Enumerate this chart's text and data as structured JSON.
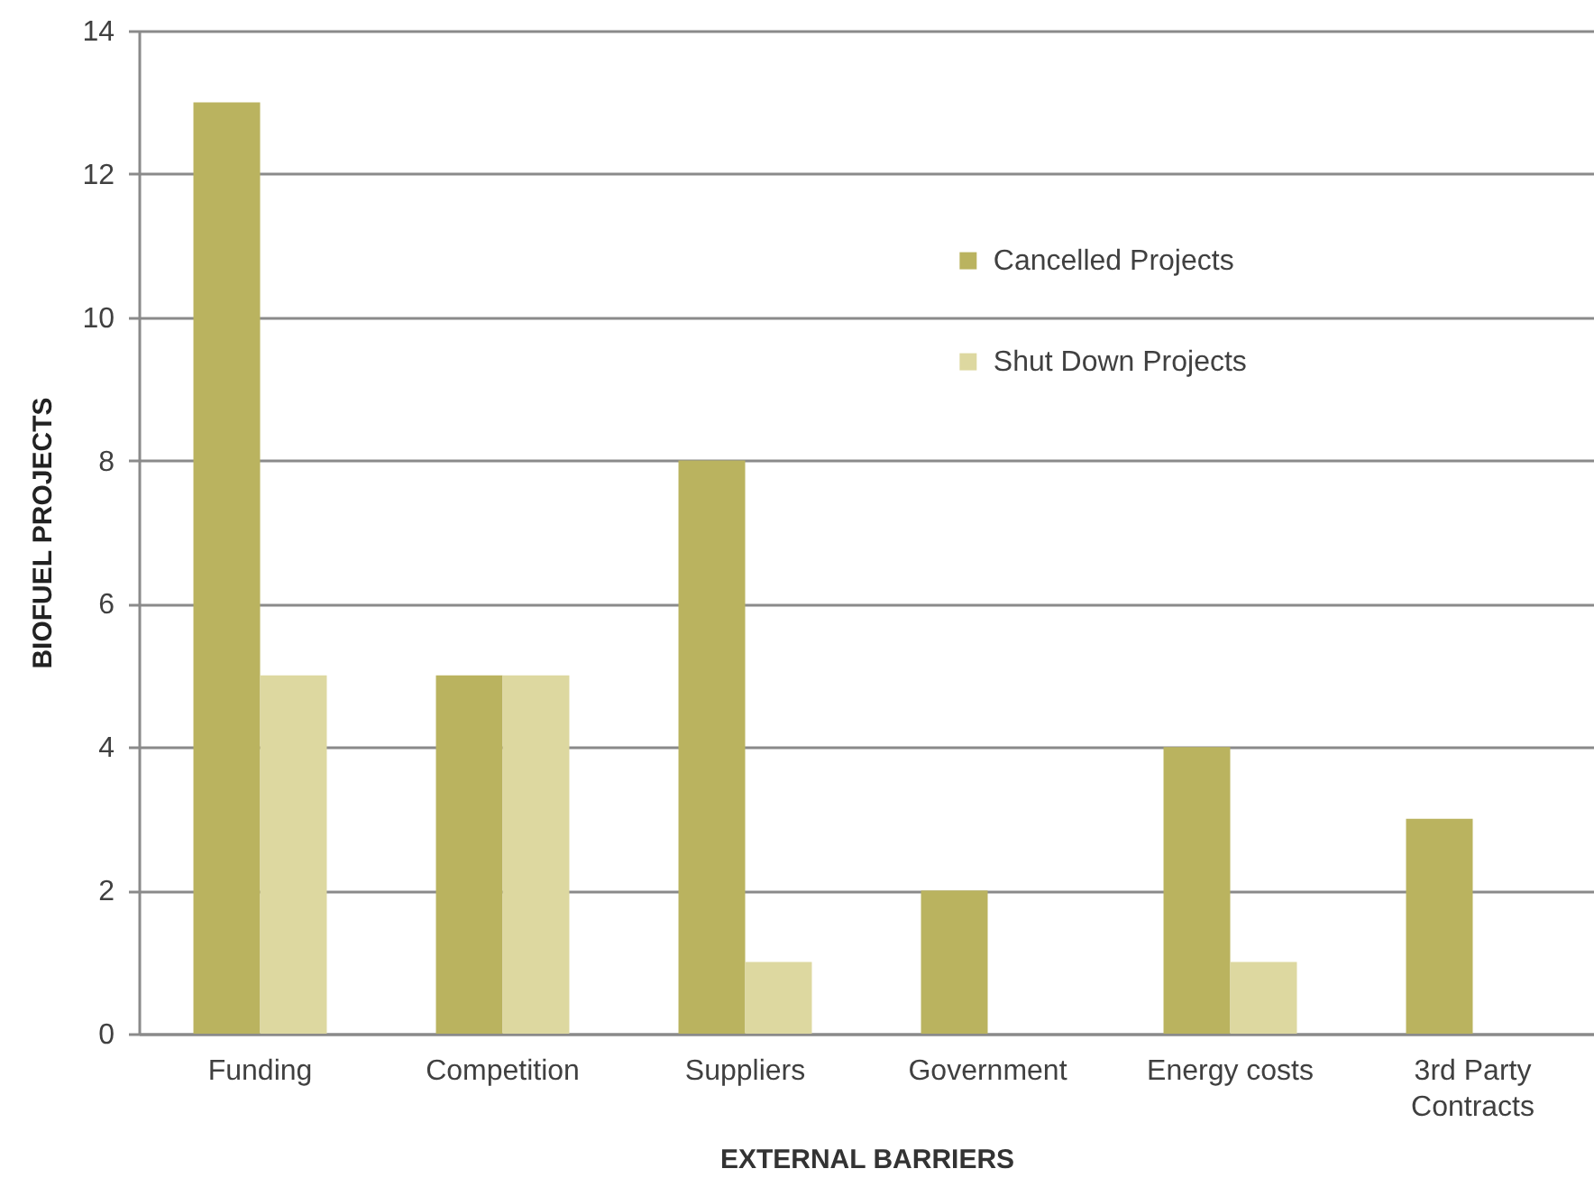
{
  "chart_data": {
    "type": "bar",
    "xlabel": "EXTERNAL BARRIERS",
    "ylabel": "BIOFUEL PROJECTS",
    "categories": [
      "Funding",
      "Competition",
      "Suppliers",
      "Government",
      "Energy costs",
      "3rd Party Contracts"
    ],
    "series": [
      {
        "name": "Cancelled Projects",
        "color": "#bab35f",
        "values": [
          13,
          5,
          8,
          2,
          4,
          3
        ]
      },
      {
        "name": "Shut Down Projects",
        "color": "#ddd8a0",
        "values": [
          5,
          5,
          1,
          null,
          1,
          null
        ]
      }
    ],
    "ylim": [
      0,
      14
    ],
    "yticks": [
      0,
      2,
      4,
      6,
      8,
      10,
      12,
      14
    ],
    "grid": "y",
    "legend": "top right"
  }
}
